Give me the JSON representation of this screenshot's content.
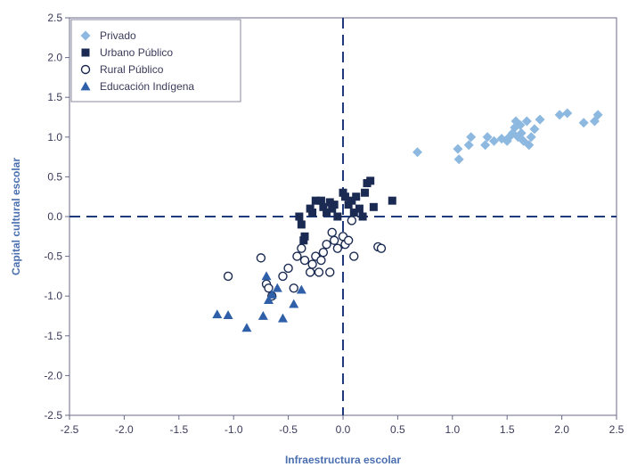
{
  "chart_data": {
    "type": "scatter",
    "title": "",
    "xlabel": "Infraestructura escolar",
    "ylabel": "Capital cultural escolar",
    "xlim": [
      -2.5,
      2.5
    ],
    "ylim": [
      -2.5,
      2.5
    ],
    "x_ticks": [
      "-2.5",
      "-2.0",
      "-1.5",
      "-1.0",
      "-0.5",
      "0.0",
      "0.5",
      "1.0",
      "1.5",
      "2.0",
      "2.5"
    ],
    "y_ticks": [
      "2.5",
      "2.0",
      "1.5",
      "1.0",
      "0.5",
      "0.0",
      "-0.5",
      "-1.0",
      "-1.5",
      "-2.0",
      "-2.5"
    ],
    "grid": false,
    "reference_lines": {
      "x": 0,
      "y": 0,
      "style": "dashed"
    },
    "legend_position": "top-left",
    "series": [
      {
        "name": "Privado",
        "marker": "diamond",
        "color": "#8db8e0",
        "points": [
          [
            0.68,
            0.81
          ],
          [
            1.05,
            0.85
          ],
          [
            1.06,
            0.72
          ],
          [
            1.15,
            0.9
          ],
          [
            1.17,
            1.0
          ],
          [
            1.3,
            0.9
          ],
          [
            1.32,
            1.0
          ],
          [
            1.38,
            0.95
          ],
          [
            1.45,
            0.98
          ],
          [
            1.5,
            0.95
          ],
          [
            1.52,
            1.0
          ],
          [
            1.55,
            1.05
          ],
          [
            1.57,
            1.12
          ],
          [
            1.58,
            1.2
          ],
          [
            1.6,
            1.0
          ],
          [
            1.62,
            1.15
          ],
          [
            1.63,
            1.05
          ],
          [
            1.65,
            0.95
          ],
          [
            1.68,
            1.2
          ],
          [
            1.7,
            0.9
          ],
          [
            1.72,
            1.0
          ],
          [
            1.75,
            1.1
          ],
          [
            1.8,
            1.22
          ],
          [
            1.98,
            1.28
          ],
          [
            2.05,
            1.3
          ],
          [
            2.2,
            1.18
          ],
          [
            2.3,
            1.2
          ],
          [
            2.33,
            1.28
          ]
        ]
      },
      {
        "name": "Urbano Público",
        "marker": "square",
        "color": "#1a2a52",
        "points": [
          [
            -0.4,
            0.0
          ],
          [
            -0.38,
            -0.1
          ],
          [
            -0.36,
            -0.3
          ],
          [
            -0.35,
            -0.25
          ],
          [
            -0.3,
            0.1
          ],
          [
            -0.28,
            0.05
          ],
          [
            -0.25,
            0.2
          ],
          [
            -0.2,
            0.2
          ],
          [
            -0.18,
            0.12
          ],
          [
            -0.15,
            0.05
          ],
          [
            -0.12,
            0.18
          ],
          [
            -0.1,
            0.1
          ],
          [
            -0.08,
            0.15
          ],
          [
            -0.05,
            0.0
          ],
          [
            0.0,
            0.3
          ],
          [
            0.02,
            0.25
          ],
          [
            0.05,
            0.15
          ],
          [
            0.08,
            0.2
          ],
          [
            0.1,
            0.05
          ],
          [
            0.12,
            0.25
          ],
          [
            0.15,
            0.1
          ],
          [
            0.18,
            0.0
          ],
          [
            0.2,
            0.3
          ],
          [
            0.22,
            0.42
          ],
          [
            0.25,
            0.45
          ],
          [
            0.28,
            0.12
          ],
          [
            0.45,
            0.2
          ]
        ]
      },
      {
        "name": "Rural Público",
        "marker": "circle-open",
        "color": "#1a2a52",
        "points": [
          [
            -1.05,
            -0.75
          ],
          [
            -0.75,
            -0.52
          ],
          [
            -0.7,
            -0.85
          ],
          [
            -0.68,
            -0.9
          ],
          [
            -0.65,
            -1.0
          ],
          [
            -0.55,
            -0.75
          ],
          [
            -0.5,
            -0.65
          ],
          [
            -0.45,
            -0.9
          ],
          [
            -0.42,
            -0.5
          ],
          [
            -0.38,
            -0.4
          ],
          [
            -0.35,
            -0.55
          ],
          [
            -0.3,
            -0.7
          ],
          [
            -0.28,
            -0.6
          ],
          [
            -0.25,
            -0.5
          ],
          [
            -0.22,
            -0.7
          ],
          [
            -0.2,
            -0.55
          ],
          [
            -0.18,
            -0.45
          ],
          [
            -0.15,
            -0.35
          ],
          [
            -0.12,
            -0.7
          ],
          [
            -0.1,
            -0.2
          ],
          [
            -0.08,
            -0.3
          ],
          [
            -0.05,
            -0.4
          ],
          [
            0.0,
            -0.25
          ],
          [
            0.02,
            -0.35
          ],
          [
            0.05,
            -0.3
          ],
          [
            0.08,
            -0.05
          ],
          [
            0.1,
            -0.5
          ],
          [
            0.32,
            -0.38
          ],
          [
            0.35,
            -0.4
          ]
        ]
      },
      {
        "name": "Educación Indígena",
        "marker": "triangle",
        "color": "#2e5fa8",
        "points": [
          [
            -1.15,
            -1.23
          ],
          [
            -1.05,
            -1.24
          ],
          [
            -0.88,
            -1.4
          ],
          [
            -0.73,
            -1.25
          ],
          [
            -0.7,
            -0.75
          ],
          [
            -0.68,
            -1.05
          ],
          [
            -0.65,
            -0.98
          ],
          [
            -0.6,
            -0.9
          ],
          [
            -0.55,
            -1.28
          ],
          [
            -0.45,
            -1.1
          ],
          [
            -0.38,
            -0.92
          ]
        ]
      }
    ]
  }
}
